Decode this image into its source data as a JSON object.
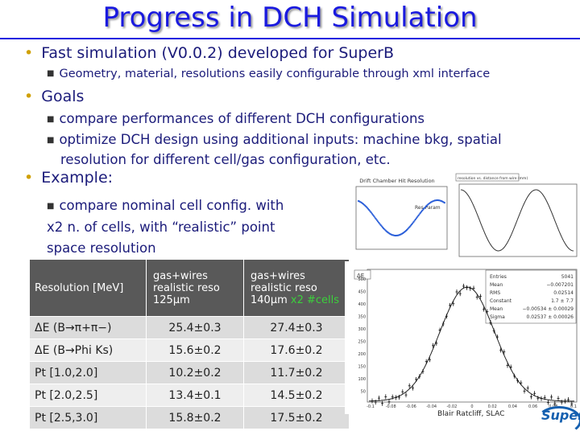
{
  "title": "Progress in DCH Simulation",
  "bullets": {
    "b1": "Fast simulation (V0.0.2) developed for SuperB",
    "b1_sub1": "Geometry, material, resolutions easily configurable through xml interface",
    "b2": "Goals",
    "b2_sub1": "compare performances of different DCH configurations",
    "b2_sub2_line1": "optimize DCH design using additional inputs: machine bkg, spatial",
    "b2_sub2_line2": "resolution for different cell/gas configuration, etc.",
    "b3": "Example:",
    "b3_sub1_line1": "compare nominal cell config. with",
    "b3_sub1_line2": "x2 n. of cells, with “realistic” point",
    "b3_sub1_line3": "space resolution"
  },
  "table": {
    "header": {
      "col1": "Resolution [MeV]",
      "col2_l1": "gas+wires",
      "col2_l2": "realistic reso",
      "col2_l3": "125μm",
      "col3_l1": "gas+wires",
      "col3_l2": "realistic reso",
      "col3_l3": "140μm",
      "col3_hl": "x2 #cells"
    },
    "rows": [
      {
        "label": "ΔE (B→π+π−)",
        "v1": "25.4±0.3",
        "v2": "27.4±0.3"
      },
      {
        "label": "ΔE (B→Phi Ks)",
        "v1": "15.6±0.2",
        "v2": "17.6±0.2"
      },
      {
        "label": "Pt [1.0,2.0]",
        "v1": "10.2±0.2",
        "v2": "11.7±0.2"
      },
      {
        "label": "Pt [2.0,2.5]",
        "v1": "13.4±0.1",
        "v2": "14.5±0.2"
      },
      {
        "label": "Pt [2.5,3.0]",
        "v1": "15.8±0.2",
        "v2": "17.5±0.2"
      }
    ]
  },
  "plots": {
    "p1_title": "Drift Chamber Hit Resolution",
    "p1_label": "Res Param",
    "p2_title": "resolution vs. distance from wire (mm)",
    "p3_label": "ΔE",
    "stats": [
      {
        "k": "Entries",
        "v": "5041"
      },
      {
        "k": "Mean",
        "v": "−0.007201"
      },
      {
        "k": "RMS",
        "v": "0.02514"
      },
      {
        "k": "Constant",
        "v": "1.7 ± 7.7"
      },
      {
        "k": "Mean",
        "v": "−0.00534 ± 0.00029"
      },
      {
        "k": "Sigma",
        "v": "0.02537 ± 0.00026"
      }
    ],
    "x_ticks": [
      "-0.1",
      "-0.08",
      "-0.06",
      "-0.04",
      "-0.02",
      "0",
      "0.02",
      "0.04",
      "0.06",
      "0.08",
      "0.1"
    ],
    "y_ticks": [
      "500",
      "450",
      "400",
      "350",
      "300",
      "250",
      "200",
      "150",
      "100",
      "50"
    ]
  },
  "footer": "Blair Ratcliff, SLAC",
  "logo": "SuperB"
}
